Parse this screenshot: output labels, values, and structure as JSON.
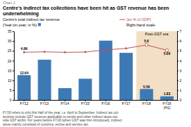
{
  "chart_data": {
    "type": "bar",
    "kicker": "Chart 1",
    "title": "Centre's indirect tax collections have been hit as GST revenue has been underwhelming",
    "subtitle": "Centre's total indirect tax revenue",
    "categories": [
      "FY12",
      "FY13",
      "FY14",
      "FY15",
      "FY16",
      "FY17",
      "FY18",
      "FY19\n(H1)"
    ],
    "series": [
      {
        "name": "(Year-on-year, in %)",
        "type": "bar",
        "color": "#3d7ab5",
        "values": [
          12.64,
          20.5,
          6.0,
          10.8,
          30.2,
          24.0,
          5.56,
          1.83
        ],
        "data_labels": true,
        "value_labels": [
          "12.64",
          null,
          null,
          null,
          null,
          null,
          "5.56",
          "1.83"
        ]
      },
      {
        "name": "(as % of GDP)",
        "type": "line",
        "axis": "y2",
        "color": "#c0504d",
        "marker": "circle",
        "values": [
          4.86,
          4.9,
          4.85,
          4.88,
          5.1,
          5.25,
          5.6,
          5.06
        ],
        "data_labels": true,
        "value_labels": [
          "4.86",
          null,
          null,
          null,
          null,
          null,
          "5.6",
          "5.06"
        ]
      }
    ],
    "ylim": [
      0,
      35
    ],
    "yticks": [
      0,
      5,
      10,
      15,
      20,
      25,
      30,
      35
    ],
    "y2lim": [
      0,
      7
    ],
    "y2ticks": [
      0,
      1,
      2,
      3,
      4,
      5,
      6,
      7
    ],
    "note": "Right-hand scale",
    "span": {
      "label": "Post-GST era",
      "start": "FY18",
      "color": "#f2dfc5"
    },
    "grid": false,
    "legend": "top",
    "footnote": "FY19 refers to only first half of the year, i.e. April to September. Indirect tax col-\nlections include GST revenue applicable to centre and other indirect taxes out-\nside GST ambit. For years before FY18 (when GST was first introduced), indirect\ntaxes mainly consisted of customs, excise and service tax."
  }
}
